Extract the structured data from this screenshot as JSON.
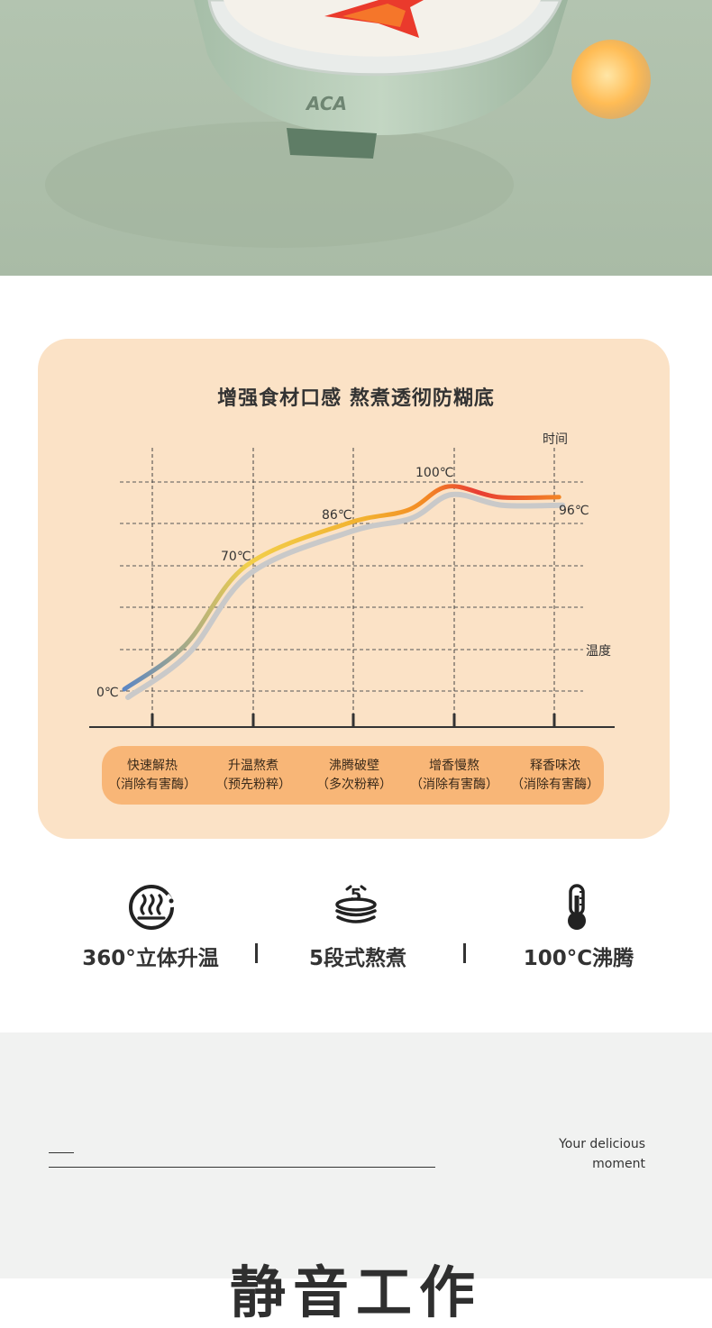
{
  "hero": {
    "brand_logo": "ACA"
  },
  "chart_data": {
    "type": "line",
    "title": "增强食材口感 熬煮透彻防糊底",
    "xlabel": "时间",
    "ylabel": "温度",
    "categories": [
      "快速解热",
      "升温熬煮",
      "沸腾破壁",
      "增香慢熬",
      "释香味浓"
    ],
    "annotations": [
      "0℃",
      "70℃",
      "86℃",
      "100℃",
      "96℃"
    ],
    "series": [
      {
        "color": "gradient blue-yellow-orange-red",
        "points": [
          {
            "x": 0,
            "y": 0
          },
          {
            "x": 0.5,
            "y": 25
          },
          {
            "x": 1.0,
            "y": 70
          },
          {
            "x": 2.0,
            "y": 86
          },
          {
            "x": 2.6,
            "y": 91
          },
          {
            "x": 3.0,
            "y": 100
          },
          {
            "x": 3.5,
            "y": 96
          },
          {
            "x": 4.1,
            "y": 96
          }
        ]
      }
    ],
    "grid": true,
    "legend": "none"
  },
  "stages": [
    {
      "name": "快速解热",
      "note": "（消除有害酶）"
    },
    {
      "name": "升温熬煮",
      "note": "（预先粉粹）"
    },
    {
      "name": "沸腾破壁",
      "note": "（多次粉粹）"
    },
    {
      "name": "增香慢熬",
      "note": "（消除有害酶）"
    },
    {
      "name": "释香味浓",
      "note": "（消除有害酶）"
    }
  ],
  "features": [
    {
      "icon": "surround-heat-icon",
      "label": "360°立体升温"
    },
    {
      "icon": "five-stage-pot-icon",
      "label": "5段式熬煮"
    },
    {
      "icon": "thermometer-icon",
      "label": "100°C沸腾"
    }
  ],
  "bottom": {
    "tagline_line1": "Your delicious",
    "tagline_line2": "moment",
    "section_title": "静音工作"
  },
  "colors": {
    "hero_bg": "#b3c4b0",
    "card_bg": "#fbe2c6",
    "pill_bg": "#f8b677",
    "curve_start": "#5b86c4",
    "curve_mid": "#f2b92f",
    "curve_end": "#e83c33"
  }
}
